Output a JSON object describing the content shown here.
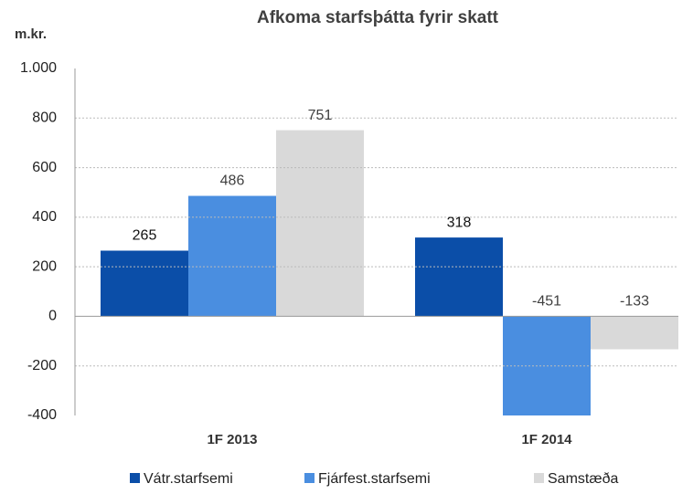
{
  "chart_data": {
    "type": "bar",
    "title": "Afkoma starfsþátta fyrir skatt",
    "y_label": "m.kr.",
    "categories": [
      "1F 2013",
      "1F 2014"
    ],
    "series": [
      {
        "name": "Vátr.starfsemi",
        "color": "#0b4ea8",
        "values": [
          265,
          318
        ]
      },
      {
        "name": "Fjárfest.starfsemi",
        "color": "#4a8ee0",
        "values": [
          486,
          -451
        ]
      },
      {
        "name": "Samstæða",
        "color": "#d9d9d9",
        "values": [
          751,
          -133
        ]
      }
    ],
    "ylim": [
      -400,
      1000
    ],
    "yticks": [
      -400,
      -200,
      0,
      200,
      400,
      600,
      800,
      {
        "value": 1000,
        "label": "1.000"
      }
    ],
    "grid": true,
    "legend": "bottom"
  }
}
